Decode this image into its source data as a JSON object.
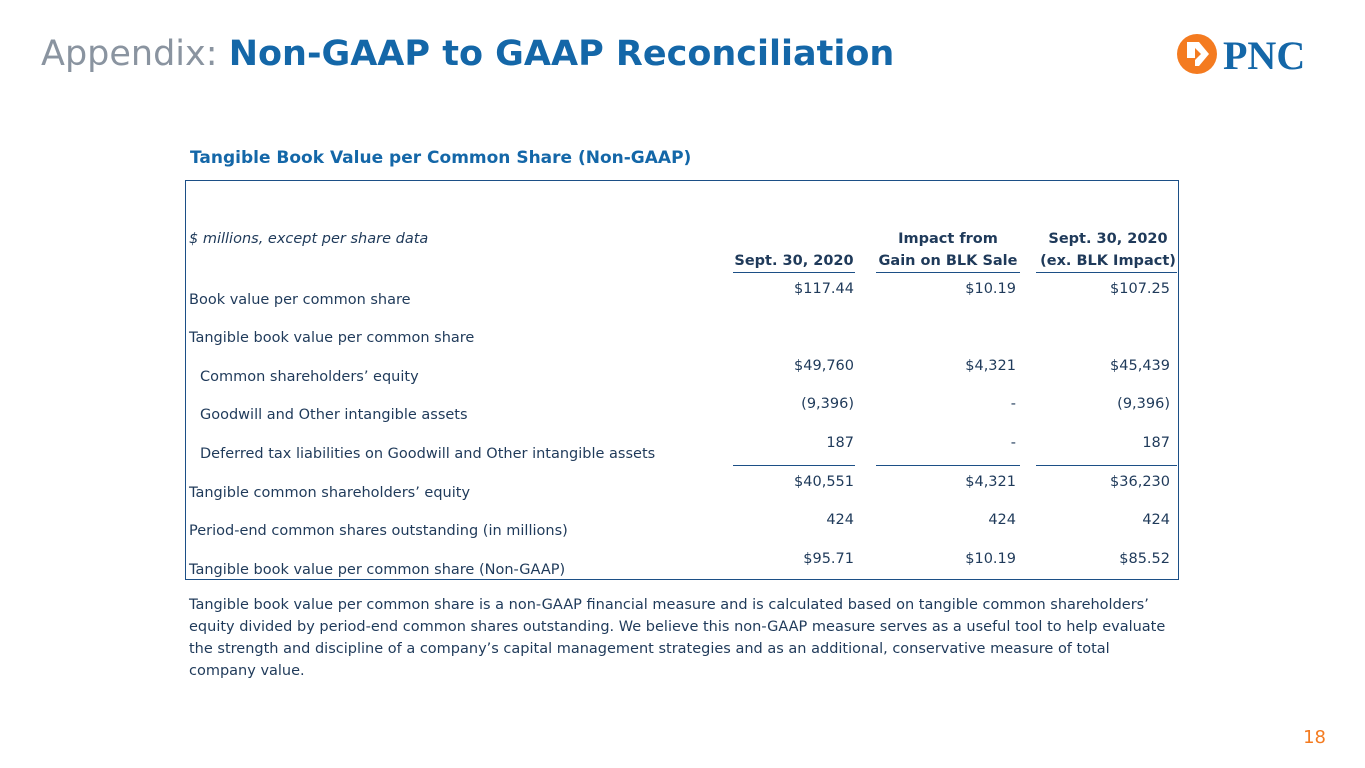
{
  "slide": {
    "title_prefix": "Appendix:",
    "title_main": "Non-GAAP to GAAP Reconciliation",
    "logo_text": "PNC",
    "page_number": "18"
  },
  "table": {
    "title": "Tangible Book Value per Common Share (Non-GAAP)",
    "units_label": "$ millions, except per share data",
    "columns": [
      {
        "line1": "",
        "line2": "Sept. 30, 2020"
      },
      {
        "line1": "Impact from",
        "line2": "Gain on BLK Sale"
      },
      {
        "line1": "Sept. 30, 2020",
        "line2": "(ex. BLK Impact)"
      }
    ],
    "rows": [
      {
        "label": "Book value per common share",
        "values": [
          "$117.44",
          "$10.19",
          "$107.25"
        ]
      },
      {
        "label": "Tangible book value per common share",
        "values": [
          "",
          "",
          ""
        ]
      },
      {
        "label": "Common shareholders’ equity",
        "values": [
          "$49,760",
          "$4,321",
          "$45,439"
        ]
      },
      {
        "label": "Goodwill and Other intangible assets",
        "values": [
          "(9,396)",
          "-",
          "(9,396)"
        ]
      },
      {
        "label": "Deferred tax liabilities on Goodwill and Other intangible assets",
        "values": [
          "187",
          "-",
          "187"
        ]
      },
      {
        "label": "Tangible common shareholders’ equity",
        "values": [
          "$40,551",
          "$4,321",
          "$36,230"
        ]
      },
      {
        "label": "Period-end common shares outstanding (in millions)",
        "values": [
          "424",
          "424",
          "424"
        ]
      },
      {
        "label": "Tangible book value per common share (Non-GAAP)",
        "values": [
          "$95.71",
          "$10.19",
          "$85.52"
        ]
      }
    ]
  },
  "footnote": "Tangible book value per common share is a non-GAAP financial measure and is calculated based on tangible common shareholders’ equity divided by period-end common shares outstanding. We believe this non-GAAP measure serves as a useful tool to help evaluate the strength and discipline of a company’s capital management strategies and as an additional, conservative measure of total company value.",
  "colors": {
    "brand_blue": "#1467a8",
    "brand_orange": "#f47b20",
    "text_navy": "#1f3a5a",
    "title_gray": "#8a94a0"
  }
}
